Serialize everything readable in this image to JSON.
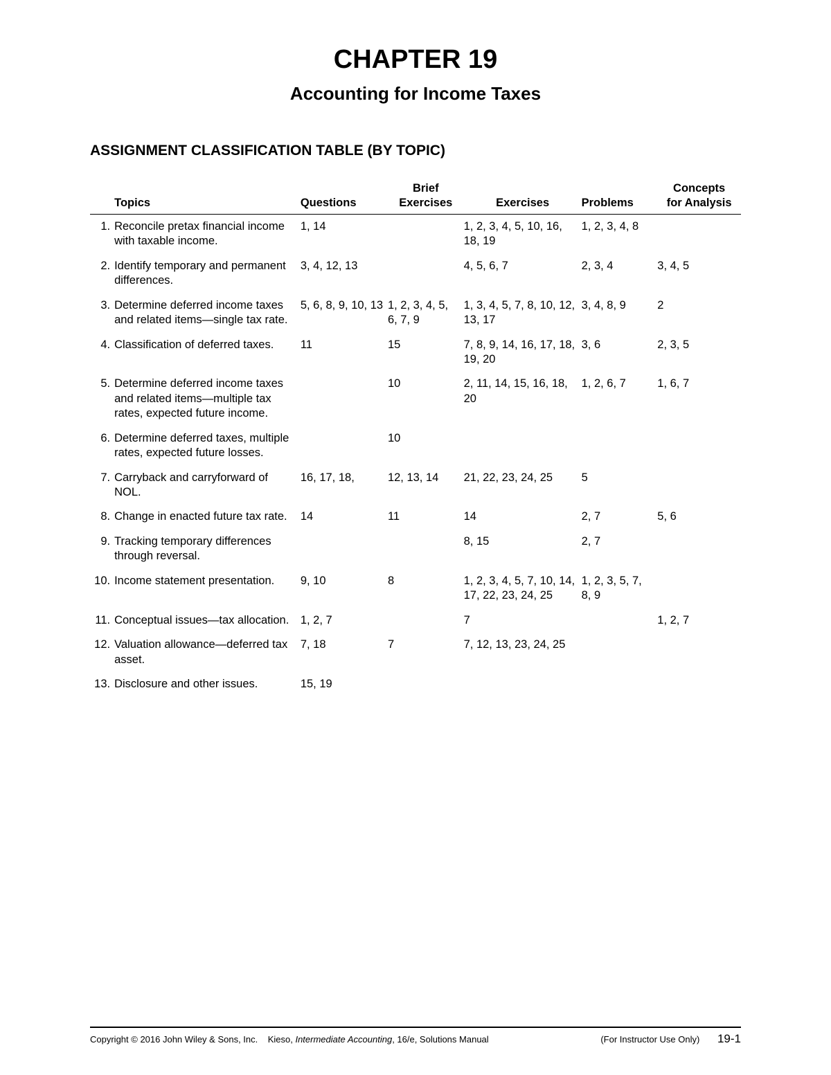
{
  "chapter": {
    "title": "CHAPTER 19",
    "subtitle": "Accounting for Income Taxes",
    "section_heading": "ASSIGNMENT CLASSIFICATION TABLE (BY TOPIC)"
  },
  "table": {
    "headers": {
      "topics": "Topics",
      "questions": "Questions",
      "brief": "Brief",
      "brief_exercises": "Exercises",
      "exercises": "Exercises",
      "problems": "Problems",
      "concepts": "Concepts",
      "for_analysis": "for Analysis"
    },
    "rows": [
      {
        "n": "1.",
        "topic": "Reconcile pretax financial income with taxable income.",
        "q": "1, 14",
        "be": "",
        "ex": "1, 2, 3, 4, 5, 10, 16, 18, 19",
        "pr": "1, 2, 3, 4, 8",
        "ca": ""
      },
      {
        "n": "2.",
        "topic": "Identify temporary and permanent differences.",
        "q": "3, 4, 12, 13",
        "be": "",
        "ex": "4, 5, 6, 7",
        "pr": "2, 3, 4",
        "ca": "3, 4, 5"
      },
      {
        "n": "3.",
        "topic": "Determine deferred income taxes and related items—single tax rate.",
        "q": "5, 6, 8, 9, 10, 13",
        "be": "1, 2, 3, 4, 5, 6, 7, 9",
        "ex": "1, 3, 4, 5, 7, 8, 10, 12, 13, 17",
        "pr": "3, 4, 8, 9",
        "ca": "2"
      },
      {
        "n": "4.",
        "topic": "Classification of deferred taxes.",
        "q": "11",
        "be": "15",
        "ex": "7, 8, 9, 14, 16, 17, 18, 19, 20",
        "pr": "3, 6",
        "ca": "2, 3, 5"
      },
      {
        "n": "5.",
        "topic": "Determine deferred income taxes and related items—multiple tax rates, expected future income.",
        "q": "",
        "be": "10",
        "ex": "2, 11, 14, 15, 16, 18, 20",
        "pr": "1, 2, 6, 7",
        "ca": "1, 6, 7"
      },
      {
        "n": "6.",
        "topic": "Determine deferred taxes, multiple rates, expected future losses.",
        "q": "",
        "be": "10",
        "ex": "",
        "pr": "",
        "ca": ""
      },
      {
        "n": "7.",
        "topic": "Carryback and carryforward of NOL.",
        "q": "16, 17, 18,",
        "be": "12, 13, 14",
        "ex": "21, 22, 23, 24, 25",
        "pr": "5",
        "ca": ""
      },
      {
        "n": "8.",
        "topic": "Change in enacted future tax rate.",
        "q": "14",
        "be": "11",
        "ex": "14",
        "pr": "2, 7",
        "ca": "5, 6"
      },
      {
        "n": "9.",
        "topic": "Tracking temporary differences through reversal.",
        "q": "",
        "be": "",
        "ex": "8, 15",
        "pr": "2, 7",
        "ca": ""
      },
      {
        "n": "10.",
        "topic": "Income statement presentation.",
        "q": "9, 10",
        "be": "8",
        "ex": "1, 2, 3, 4, 5, 7, 10, 14, 17, 22, 23, 24, 25",
        "pr": "1, 2, 3, 5, 7, 8, 9",
        "ca": ""
      },
      {
        "n": "11.",
        "topic": "Conceptual issues—tax allocation.",
        "q": "1, 2, 7",
        "be": "",
        "ex": "7",
        "pr": "",
        "ca": "1, 2, 7"
      },
      {
        "n": "12.",
        "topic": "Valuation allowance—deferred tax asset.",
        "q": "7, 18",
        "be": "7",
        "ex": "7, 12, 13, 23, 24, 25",
        "pr": "",
        "ca": ""
      },
      {
        "n": "13.",
        "topic": "Disclosure and other issues.",
        "q": "15, 19",
        "be": "",
        "ex": "",
        "pr": "",
        "ca": ""
      }
    ]
  },
  "footer": {
    "copyright": "Copyright © 2016 John Wiley & Sons, Inc.",
    "book": "Kieso, ",
    "book_title": "Intermediate Accounting",
    "edition": ", 16/e, Solutions Manual",
    "note": "(For Instructor Use Only)",
    "page": "19-1"
  }
}
